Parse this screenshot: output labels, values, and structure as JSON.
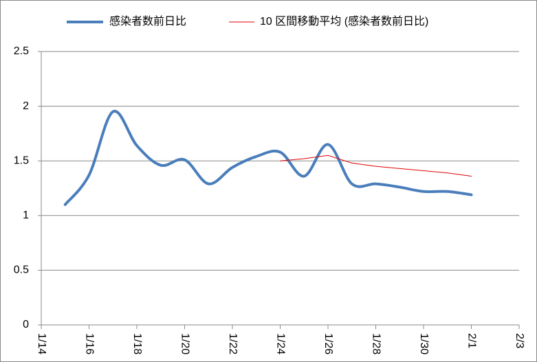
{
  "chart_data": {
    "type": "line",
    "categories": [
      "1/14",
      null,
      "1/16",
      null,
      "1/18",
      null,
      "1/20",
      null,
      "1/22",
      null,
      "1/24",
      null,
      "1/26",
      null,
      "1/28",
      null,
      "1/30",
      null,
      "2/1",
      null,
      "2/3"
    ],
    "series": [
      {
        "name": "感染者数前日比",
        "color": "#4a7ebb",
        "width": 4,
        "values": [
          null,
          1.1,
          1.37,
          1.95,
          1.64,
          1.46,
          1.51,
          1.29,
          1.44,
          1.54,
          1.58,
          1.36,
          1.65,
          1.29,
          1.29,
          1.26,
          1.22,
          1.22,
          1.19,
          null,
          null
        ]
      },
      {
        "name": "10 区間移動平均 (感染者数前日比)",
        "color": "#e00000",
        "width": 1,
        "values": [
          null,
          null,
          null,
          null,
          null,
          null,
          null,
          null,
          null,
          null,
          1.5,
          1.52,
          1.55,
          1.48,
          1.45,
          1.43,
          1.41,
          1.39,
          1.36,
          null,
          null
        ]
      }
    ],
    "ylim": [
      0,
      2.5
    ],
    "yticks": [
      0,
      0.5,
      1,
      1.5,
      2,
      2.5
    ],
    "grid": true,
    "legend": "top"
  }
}
